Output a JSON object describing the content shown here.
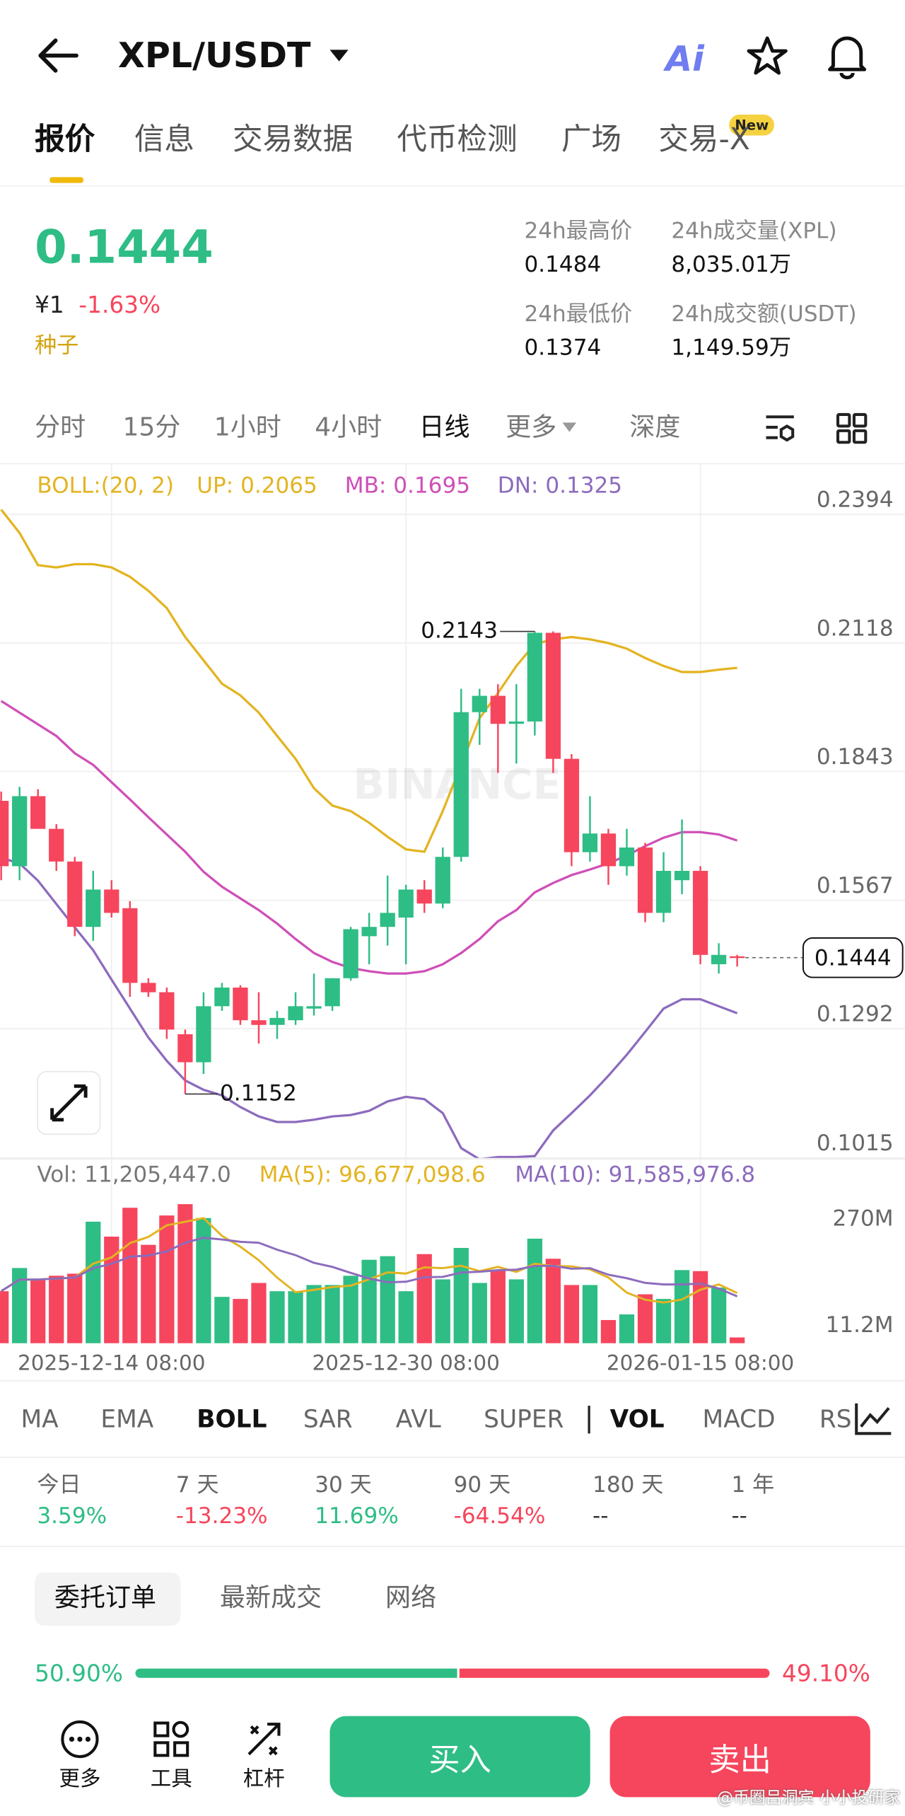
{
  "header": {
    "pair": "XPL/USDT",
    "ai": "Ai"
  },
  "tabs": [
    "报价",
    "信息",
    "交易数据",
    "代币检测",
    "广场",
    "交易-X"
  ],
  "new_badge": "New",
  "price": {
    "last": "0.1444",
    "cny": "¥1",
    "change": "-1.63%",
    "tag": "种子"
  },
  "stats": [
    {
      "label": "24h最高价",
      "value": "0.1484"
    },
    {
      "label": "24h成交量(XPL)",
      "value": "8,035.01万"
    },
    {
      "label": "24h最低价",
      "value": "0.1374"
    },
    {
      "label": "24h成交额(USDT)",
      "value": "1,149.59万"
    }
  ],
  "intervals": [
    "分时",
    "15分",
    "1小时",
    "4小时",
    "日线",
    "更多",
    "深度"
  ],
  "chart_data": [
    {
      "type": "candlestick",
      "title": "BOLL:(20, 2)",
      "watermark": "BINANCE",
      "up_color": "#2ebd85",
      "down_color": "#f6465d",
      "categories": [
        null,
        null,
        null,
        null,
        null,
        null,
        "2025-12-14 08:00",
        null,
        null,
        null,
        null,
        null,
        null,
        null,
        null,
        null,
        null,
        null,
        null,
        null,
        null,
        null,
        "2025-12-30 08:00",
        null,
        null,
        null,
        null,
        null,
        null,
        null,
        null,
        null,
        null,
        null,
        null,
        null,
        null,
        null,
        "2026-01-15 08:00",
        null,
        null
      ],
      "open": [
        0.178,
        0.164,
        0.179,
        0.172,
        0.165,
        0.151,
        0.159,
        0.155,
        0.139,
        0.137,
        0.128,
        0.122,
        0.134,
        0.138,
        0.131,
        0.13,
        0.131,
        0.1335,
        0.134,
        0.14,
        0.149,
        0.151,
        0.153,
        0.159,
        0.156,
        0.166,
        0.197,
        0.2005,
        0.1945,
        0.195,
        0.214,
        0.187,
        0.167,
        0.171,
        0.164,
        0.168,
        0.154,
        0.161,
        0.163,
        0.143,
        0.1447
      ],
      "high": [
        0.18,
        0.181,
        0.1805,
        0.173,
        0.166,
        0.163,
        0.161,
        0.1565,
        0.14,
        0.138,
        0.129,
        0.137,
        0.139,
        0.1385,
        0.137,
        0.133,
        0.137,
        0.141,
        0.14,
        0.151,
        0.154,
        0.162,
        0.16,
        0.161,
        0.168,
        0.202,
        0.202,
        0.203,
        0.203,
        0.2143,
        0.2143,
        0.188,
        0.179,
        0.172,
        0.172,
        0.169,
        0.167,
        0.174,
        0.164,
        0.1475,
        0.145
      ],
      "low": [
        0.161,
        0.161,
        0.172,
        0.163,
        0.149,
        0.148,
        0.153,
        0.136,
        0.136,
        0.127,
        0.1152,
        0.1195,
        0.133,
        0.13,
        0.126,
        0.127,
        0.13,
        0.132,
        0.133,
        0.1395,
        0.143,
        0.147,
        0.143,
        0.154,
        0.155,
        0.165,
        0.19,
        0.184,
        0.186,
        0.192,
        0.184,
        0.164,
        0.165,
        0.16,
        0.162,
        0.152,
        0.152,
        0.158,
        0.143,
        0.141,
        0.1425
      ],
      "close": [
        0.164,
        0.179,
        0.172,
        0.165,
        0.151,
        0.159,
        0.154,
        0.139,
        0.137,
        0.129,
        0.122,
        0.134,
        0.138,
        0.131,
        0.13,
        0.1315,
        0.134,
        0.134,
        0.14,
        0.1505,
        0.151,
        0.154,
        0.159,
        0.156,
        0.166,
        0.197,
        0.2005,
        0.1945,
        0.195,
        0.214,
        0.187,
        0.167,
        0.171,
        0.164,
        0.168,
        0.154,
        0.163,
        0.163,
        0.145,
        0.145,
        0.1444
      ],
      "bands": [
        {
          "label": "UP: 0.2065",
          "color": "#e3b421",
          "values": [
            0.2404,
            0.2354,
            0.2285,
            0.228,
            0.2287,
            0.2287,
            0.228,
            0.226,
            0.223,
            0.2193,
            0.2131,
            0.2081,
            0.2031,
            0.2006,
            0.1969,
            0.1919,
            0.187,
            0.1807,
            0.177,
            0.1758,
            0.1733,
            0.1703,
            0.1676,
            0.1671,
            0.1758,
            0.1857,
            0.1957,
            0.2011,
            0.2069,
            0.2116,
            0.2126,
            0.2131,
            0.2126,
            0.2118,
            0.2106,
            0.2086,
            0.2069,
            0.2056,
            0.2056,
            0.2061,
            0.2065
          ]
        },
        {
          "label": "MB: 0.1695",
          "color": "#cf4fb7",
          "values": [
            0.1994,
            0.1969,
            0.1944,
            0.1919,
            0.1882,
            0.1857,
            0.182,
            0.1783,
            0.1745,
            0.1708,
            0.1671,
            0.1628,
            0.1596,
            0.1571,
            0.1546,
            0.1517,
            0.1484,
            0.1454,
            0.1435,
            0.1422,
            0.1415,
            0.141,
            0.141,
            0.1415,
            0.143,
            0.1454,
            0.1484,
            0.1522,
            0.1546,
            0.1584,
            0.1604,
            0.1621,
            0.1633,
            0.1646,
            0.1663,
            0.1683,
            0.1701,
            0.1713,
            0.1713,
            0.1708,
            0.1695
          ]
        },
        {
          "label": "DN: 0.1325",
          "color": "#8c6bbd",
          "values": [
            0.1658,
            0.1646,
            0.1609,
            0.1559,
            0.1509,
            0.146,
            0.1397,
            0.1335,
            0.1273,
            0.1223,
            0.1181,
            0.1161,
            0.1149,
            0.1124,
            0.1104,
            0.1092,
            0.1092,
            0.1097,
            0.1104,
            0.1107,
            0.1116,
            0.1136,
            0.1146,
            0.1141,
            0.1111,
            0.1036,
            0.1012,
            0.1017,
            0.1017,
            0.1019,
            0.1074,
            0.1111,
            0.1149,
            0.1191,
            0.1236,
            0.1285,
            0.1335,
            0.1355,
            0.1355,
            0.134,
            0.1325
          ]
        }
      ],
      "ylim": [
        0.1015,
        0.2491
      ],
      "yticks": [
        0.2394,
        0.2118,
        0.1843,
        0.1567,
        0.1292,
        0.1015
      ],
      "grid": true
    },
    {
      "type": "bar",
      "title": "Vol: 11,205,447.0",
      "values": [
        101000000,
        146000000,
        124000000,
        131000000,
        135000000,
        236000000,
        207000000,
        263000000,
        191000000,
        248000000,
        270000000,
        243000000,
        90000000,
        86000000,
        117000000,
        101000000,
        101000000,
        113000000,
        113000000,
        131000000,
        162000000,
        169000000,
        101000000,
        173000000,
        124000000,
        185000000,
        117000000,
        142000000,
        124000000,
        203000000,
        164000000,
        113000000,
        113000000,
        45000000,
        56000000,
        95000000,
        86000000,
        142000000,
        140000000,
        108000000,
        11205447
      ],
      "ma_lines": [
        {
          "label": "MA(5): 96,677,098.6",
          "color": "#e3b421",
          "period": 5
        },
        {
          "label": "MA(10): 91,585,976.8",
          "color": "#8c6bbd",
          "period": 10
        }
      ],
      "ylim": [
        0,
        353000000
      ],
      "yticks": [
        {
          "value": 270000000,
          "label": "270M"
        },
        {
          "value": 11200000,
          "label": "11.2M"
        }
      ]
    }
  ],
  "indicators": [
    "MA",
    "EMA",
    "BOLL",
    "SAR",
    "AVL",
    "SUPER",
    "VOL",
    "MACD",
    "RS"
  ],
  "performance": [
    {
      "label": "今日",
      "value": "3.59%",
      "color": "#2ebd85"
    },
    {
      "label": "7 天",
      "value": "-13.23%",
      "color": "#f6465d"
    },
    {
      "label": "30 天",
      "value": "11.69%",
      "color": "#2ebd85"
    },
    {
      "label": "90 天",
      "value": "-64.54%",
      "color": "#f6465d"
    },
    {
      "label": "180 天",
      "value": "--",
      "color": "#333333"
    },
    {
      "label": "1 年",
      "value": "--",
      "color": "#333333"
    }
  ],
  "order_tabs": [
    "委托订单",
    "最新成交",
    "网络"
  ],
  "ratio": {
    "buy": 50.9,
    "buy_label": "50.90%",
    "sell": 49.1,
    "sell_label": "49.10%"
  },
  "footer": {
    "more": "更多",
    "tools": "工具",
    "leverage": "杠杆",
    "buy": "买入",
    "sell": "卖出"
  },
  "watermark": "@币圈吕洞宾 小小投研家"
}
